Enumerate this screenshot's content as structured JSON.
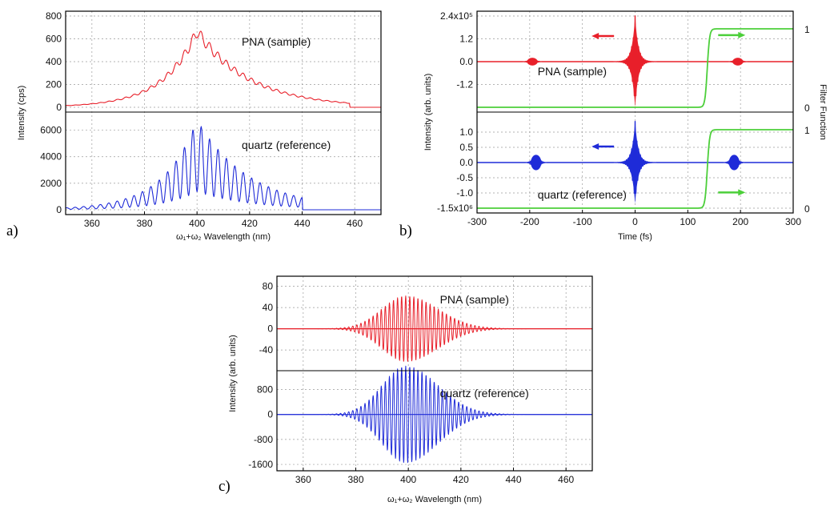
{
  "chart_data": [
    {
      "id": "a",
      "panel_label": "a)",
      "type": "line",
      "xlabel": "ω₁+ω₂ Wavelength (nm)",
      "ylabel": "Intensity (cps)",
      "xlim": [
        350,
        470
      ],
      "xticks": [
        "360",
        "380",
        "400",
        "420",
        "440",
        "460"
      ],
      "grid": true,
      "subplots": [
        {
          "name": "PNA (sample)",
          "color": "#e8202a",
          "ylim": [
            0,
            800
          ],
          "yticks": [
            "0",
            "200",
            "400",
            "600",
            "800"
          ],
          "envelope": {
            "center_nm": 400,
            "peak": 720,
            "fringe_depth": 0.15,
            "fringe_period_nm": 3.2,
            "cutoff_nm": 458
          }
        },
        {
          "name": "quartz (reference)",
          "color": "#1f2bd8",
          "ylim": [
            0,
            7000
          ],
          "yticks": [
            "0",
            "2000",
            "4000",
            "6000"
          ],
          "envelope": {
            "center_nm": 400,
            "peak": 6800,
            "fringe_depth": 0.8,
            "fringe_period_nm": 3.2,
            "cutoff_nm": 440
          }
        }
      ]
    },
    {
      "id": "b",
      "panel_label": "b)",
      "type": "line",
      "xlabel": "Time (fs)",
      "ylabel": "Intensity (arb. units)",
      "ylabel_right": "Filter Function",
      "xlim": [
        -300,
        300
      ],
      "xticks": [
        "-300",
        "-200",
        "-100",
        "0",
        "100",
        "200",
        "300"
      ],
      "grid": true,
      "subplots": [
        {
          "name": "PNA (sample)",
          "color": "#e8202a",
          "ylim": [
            -2.4,
            2.4
          ],
          "yticks": [
            "-1.2",
            "0.0",
            "1.2",
            "2.4x10⁵"
          ],
          "right_ticks": [
            "0",
            "1"
          ],
          "main_peak": 2.4,
          "side_peaks_fs": [
            -195,
            195
          ],
          "side_peak_amp": 0.12,
          "filter_step_fs": 130
        },
        {
          "name": "quartz (reference)",
          "color": "#1f2bd8",
          "ylim": [
            -1.5,
            1.5
          ],
          "yticks": [
            "-1.5x10⁶",
            "-1.0",
            "-0.5",
            "0.0",
            "0.5",
            "1.0"
          ],
          "right_ticks": [
            "0",
            "1"
          ],
          "main_peak": 1.35,
          "side_peaks_fs": [
            -188,
            188
          ],
          "side_peak_amp": 0.2,
          "filter_step_fs": 130
        }
      ],
      "filter_color": "#4ccf3a"
    },
    {
      "id": "c",
      "panel_label": "c)",
      "type": "line",
      "xlabel": "ω₁+ω₂ Wavelength (nm)",
      "ylabel": "Intensity (arb. units)",
      "xlim": [
        350,
        470
      ],
      "xticks": [
        "360",
        "380",
        "400",
        "420",
        "440",
        "460"
      ],
      "grid": true,
      "subplots": [
        {
          "name": "PNA (sample)",
          "color": "#e8202a",
          "ylim": [
            -70,
            90
          ],
          "yticks": [
            "-40",
            "0",
            "40",
            "80"
          ],
          "peak": 62,
          "center_nm": 399,
          "cutoff_nm": 455
        },
        {
          "name": "quartz (reference)",
          "color": "#1f2bd8",
          "ylim": [
            -1650,
            1250
          ],
          "yticks": [
            "-1600",
            "-800",
            "0",
            "800"
          ],
          "peak": 1550,
          "center_nm": 399,
          "cutoff_nm": 452
        }
      ]
    }
  ]
}
